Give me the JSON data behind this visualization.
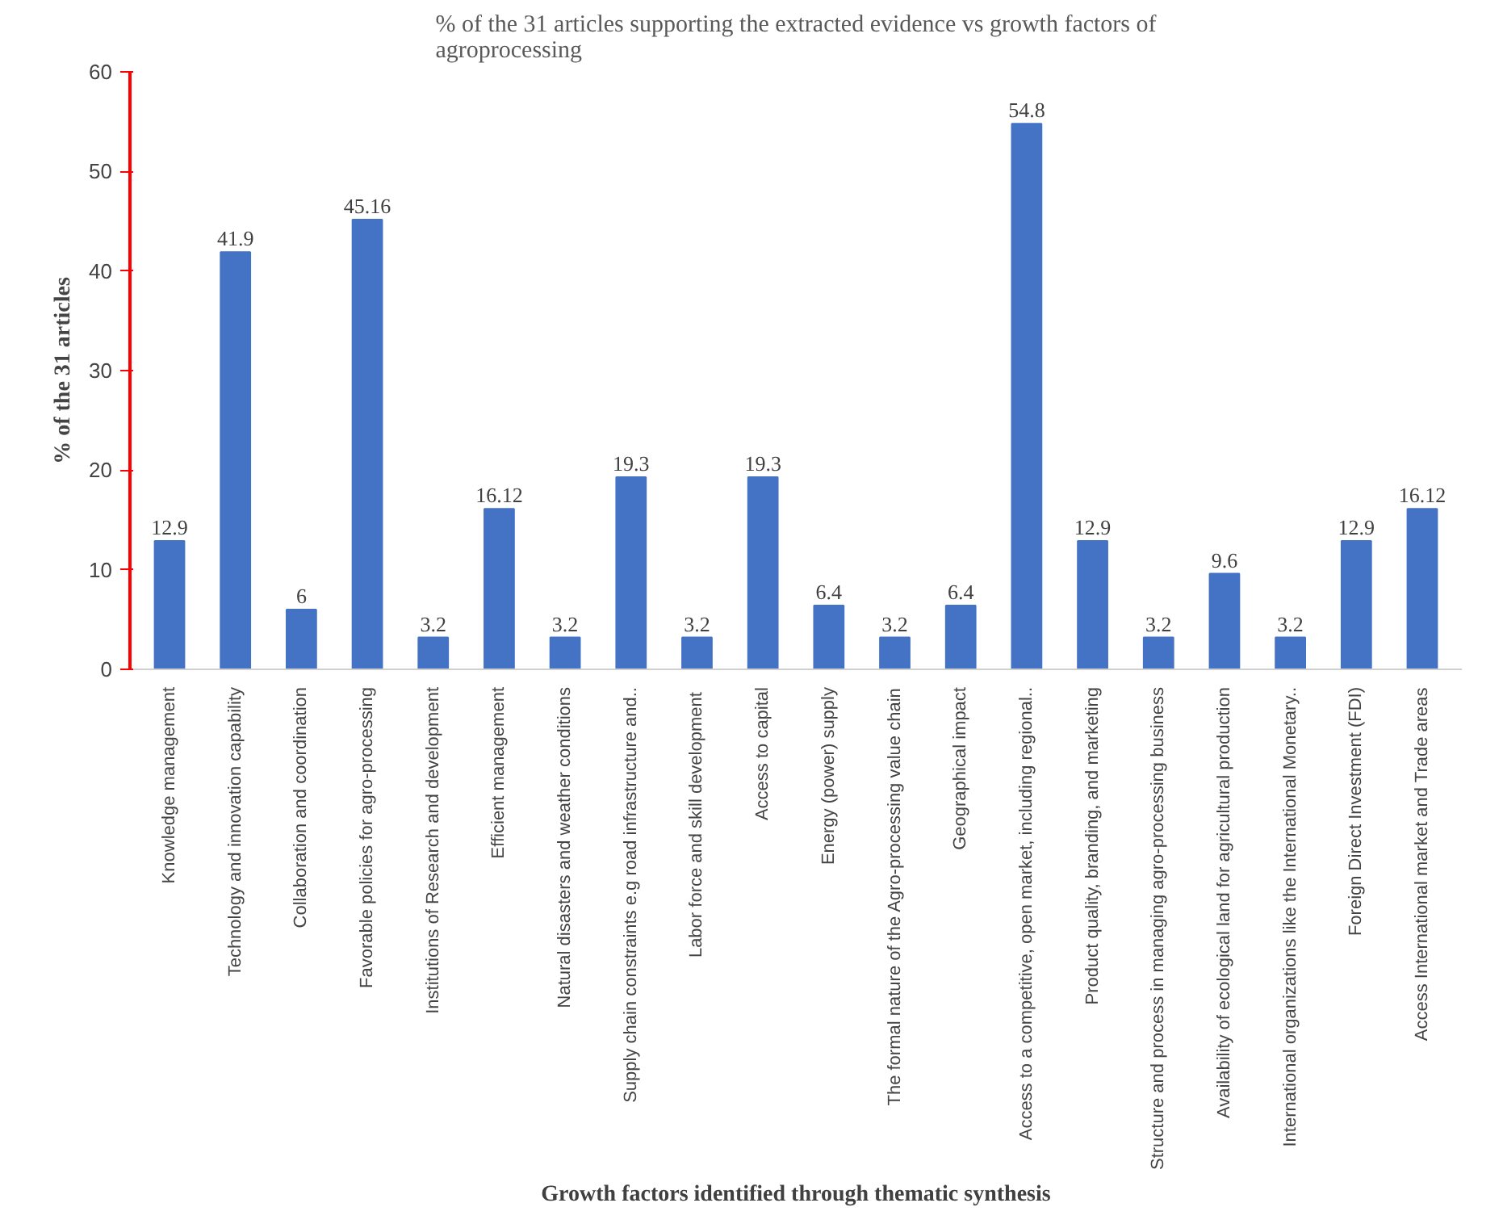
{
  "chart_data": {
    "type": "bar",
    "title": "% of the 31 articles supporting the extracted evidence vs growth factors of agroprocessing",
    "xlabel": "Growth factors identified through thematic synthesis",
    "ylabel": "% of the 31 articles",
    "categories": [
      "Knowledge management",
      "Technology and innovation capability",
      "Collaboration and coordination",
      "Favorable policies for agro-processing",
      "Institutions of Research and development",
      "Efficient management",
      "Natural disasters and weather conditions",
      "Supply chain constraints e.g road infrastructure and..",
      "Labor force  and skill development",
      "Access to capital",
      "Energy (power) supply",
      "The formal nature of the Agro-processing value chain",
      "Geographical impact",
      "Access to a competitive, open market, including regional..",
      "Product quality, branding, and marketing",
      "Structure and process in managing agro-processing business",
      "Availability of ecological land for agricultural production",
      "International organizations like the International Monetary..",
      "Foreign Direct Investment (FDI)",
      "Access International market and Trade areas"
    ],
    "values": [
      12.9,
      41.9,
      6,
      45.16,
      3.2,
      16.12,
      3.2,
      19.3,
      3.2,
      19.3,
      6.4,
      3.2,
      6.4,
      54.8,
      12.9,
      3.2,
      9.6,
      3.2,
      12.9,
      16.12
    ],
    "color": "#4472c4",
    "ylim": [
      0,
      60
    ],
    "yticks": [
      0,
      10,
      20,
      30,
      40,
      50,
      60
    ],
    "grid": false,
    "data_labels": true
  }
}
